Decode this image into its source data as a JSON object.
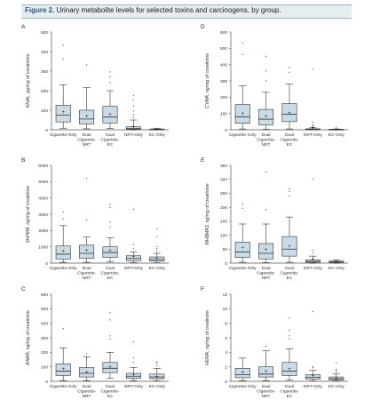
{
  "figure": {
    "label": "Figure 2.",
    "caption": "Urinary metabolite levels for selected toxins and carcinogens, by group."
  },
  "colors": {
    "box_fill": "#c9dbe7",
    "box_stroke": "#333333",
    "caption_bg": "#e5edf1",
    "caption_border": "#9cb6c3",
    "label_accent": "#2a5b77"
  },
  "chart_data": [
    {
      "panel": "A",
      "type": "box",
      "ylabel": "NNAL, pg/mg of creatinine",
      "ylim": [
        0,
        500
      ],
      "yticks": [
        0,
        100,
        200,
        300,
        400,
        500
      ],
      "categories": [
        "Cigarette-Only",
        "Dual Cigarette-NRT",
        "Dual Cigarette-EC",
        "NRT-Only",
        "EC-Only"
      ],
      "boxes": [
        {
          "min": 8,
          "q1": 40,
          "median": 75,
          "q3": 125,
          "max": 230,
          "mean": 90,
          "outliers": [
            360,
            430
          ]
        },
        {
          "min": 5,
          "q1": 30,
          "median": 55,
          "q3": 100,
          "max": 215,
          "mean": 70,
          "outliers": [
            330
          ]
        },
        {
          "min": 6,
          "q1": 35,
          "median": 65,
          "q3": 120,
          "max": 200,
          "mean": 80,
          "outliers": [
            240,
            270,
            295
          ]
        },
        {
          "min": 0,
          "q1": 3,
          "median": 6,
          "q3": 15,
          "max": 50,
          "mean": 15,
          "outliers": [
            60,
            75,
            95,
            120,
            150,
            175
          ]
        },
        {
          "min": 0,
          "q1": 1,
          "median": 2,
          "q3": 4,
          "max": 8,
          "mean": 3,
          "outliers": []
        }
      ]
    },
    {
      "panel": "D",
      "type": "box",
      "ylabel": "CYMA, ng/mg of creatinine",
      "ylim": [
        0,
        600
      ],
      "yticks": [
        0,
        100,
        200,
        300,
        400,
        500,
        600
      ],
      "categories": [
        "Cigarette-Only",
        "Dual Cigarette-NRT",
        "Dual Cigarette-EC",
        "NRT-Only",
        "EC-Only"
      ],
      "boxes": [
        {
          "min": 5,
          "q1": 40,
          "median": 80,
          "q3": 155,
          "max": 270,
          "mean": 100,
          "outliers": [
            460,
            530
          ]
        },
        {
          "min": 3,
          "q1": 30,
          "median": 65,
          "q3": 125,
          "max": 230,
          "mean": 85,
          "outliers": [
            300,
            360,
            450
          ]
        },
        {
          "min": 5,
          "q1": 50,
          "median": 95,
          "q3": 160,
          "max": 280,
          "mean": 105,
          "outliers": [
            350,
            380
          ]
        },
        {
          "min": 0,
          "q1": 1,
          "median": 3,
          "q3": 6,
          "max": 12,
          "mean": 15,
          "outliers": [
            20,
            30,
            45,
            370
          ]
        },
        {
          "min": 0,
          "q1": 1,
          "median": 2,
          "q3": 3,
          "max": 5,
          "mean": 3,
          "outliers": [
            10
          ]
        }
      ]
    },
    {
      "panel": "B",
      "type": "box",
      "ylabel": "3HPMA, ng/mg of creatinine",
      "ylim": [
        0,
        6000
      ],
      "yticks": [
        0,
        1000,
        2000,
        3000,
        4000,
        5000,
        6000
      ],
      "categories": [
        "Cigarette-Only",
        "Dual Cigarette-NRT",
        "Dual Cigarette-EC",
        "NRT-Only",
        "EC-Only"
      ],
      "boxes": [
        {
          "min": 50,
          "q1": 250,
          "median": 550,
          "q3": 1050,
          "max": 2300,
          "mean": 750,
          "outliers": [
            2700,
            3100
          ]
        },
        {
          "min": 50,
          "q1": 300,
          "median": 600,
          "q3": 1100,
          "max": 1600,
          "mean": 780,
          "outliers": [
            2600,
            5200
          ]
        },
        {
          "min": 80,
          "q1": 350,
          "median": 650,
          "q3": 1000,
          "max": 1550,
          "mean": 800,
          "outliers": [
            2200,
            2500,
            3400,
            3600
          ]
        },
        {
          "min": 30,
          "q1": 150,
          "median": 280,
          "q3": 450,
          "max": 700,
          "mean": 380,
          "outliers": [
            900,
            1100,
            3300
          ]
        },
        {
          "min": 20,
          "q1": 120,
          "median": 220,
          "q3": 380,
          "max": 600,
          "mean": 300,
          "outliers": [
            700,
            850,
            1000,
            1600,
            2100
          ]
        }
      ]
    },
    {
      "panel": "E",
      "type": "box",
      "ylabel": "MHBMA3, ng/mg of creatinine",
      "ylim": [
        0,
        350
      ],
      "yticks": [
        0,
        50,
        100,
        150,
        200,
        250,
        300,
        350
      ],
      "categories": [
        "Cigarette-Only",
        "Dual Cigarette-NRT",
        "Dual Cigarette-EC",
        "NRT-Only",
        "EC-Only"
      ],
      "boxes": [
        {
          "min": 3,
          "q1": 20,
          "median": 40,
          "q3": 75,
          "max": 140,
          "mean": 55,
          "outliers": [
            195,
            210
          ]
        },
        {
          "min": 2,
          "q1": 15,
          "median": 35,
          "q3": 70,
          "max": 140,
          "mean": 50,
          "outliers": [
            190,
            325
          ]
        },
        {
          "min": 3,
          "q1": 25,
          "median": 50,
          "q3": 95,
          "max": 165,
          "mean": 60,
          "outliers": [
            240,
            255,
            265
          ]
        },
        {
          "min": 0,
          "q1": 3,
          "median": 6,
          "q3": 12,
          "max": 25,
          "mean": 15,
          "outliers": [
            35,
            45,
            300
          ]
        },
        {
          "min": 0,
          "q1": 2,
          "median": 4,
          "q3": 7,
          "max": 12,
          "mean": 5,
          "outliers": []
        }
      ]
    },
    {
      "panel": "C",
      "type": "box",
      "ylabel": "AAMA, ng/mg of creatinine",
      "ylim": [
        0,
        600
      ],
      "yticks": [
        0,
        100,
        200,
        300,
        400,
        500,
        600
      ],
      "categories": [
        "Cigarette-Only",
        "Dual Cigarette-NRT",
        "Dual Cigarette-EC",
        "NRT-Only",
        "EC-Only"
      ],
      "boxes": [
        {
          "min": 5,
          "q1": 40,
          "median": 70,
          "q3": 120,
          "max": 230,
          "mean": 85,
          "outliers": [
            360
          ]
        },
        {
          "min": 5,
          "q1": 30,
          "median": 55,
          "q3": 95,
          "max": 170,
          "mean": 65,
          "outliers": [
            190
          ]
        },
        {
          "min": 20,
          "q1": 60,
          "median": 90,
          "q3": 130,
          "max": 200,
          "mean": 100,
          "outliers": [
            290,
            310,
            420,
            470
          ]
        },
        {
          "min": 5,
          "q1": 20,
          "median": 35,
          "q3": 55,
          "max": 95,
          "mean": 45,
          "outliers": [
            130,
            160,
            270
          ]
        },
        {
          "min": 3,
          "q1": 18,
          "median": 30,
          "q3": 50,
          "max": 90,
          "mean": 35,
          "outliers": [
            105,
            125,
            130
          ]
        }
      ]
    },
    {
      "panel": "F",
      "type": "box",
      "ylabel": "HEMA, ng/mg of creatinine",
      "ylim": [
        0,
        12
      ],
      "yticks": [
        0,
        2,
        4,
        6,
        8,
        10,
        12
      ],
      "categories": [
        "Cigarette-Only",
        "Dual Cigarette-NRT",
        "Dual Cigarette-EC",
        "NRT-Only",
        "EC-Only"
      ],
      "boxes": [
        {
          "min": 0.1,
          "q1": 0.5,
          "median": 0.9,
          "q3": 1.8,
          "max": 3.2,
          "mean": 1.2,
          "outliers": []
        },
        {
          "min": 0.1,
          "q1": 0.6,
          "median": 1.0,
          "q3": 2.0,
          "max": 4.2,
          "mean": 1.4,
          "outliers": [
            4.8
          ]
        },
        {
          "min": 0.2,
          "q1": 0.8,
          "median": 1.4,
          "q3": 2.6,
          "max": 4.5,
          "mean": 1.7,
          "outliers": [
            5.8,
            6.2,
            7.0,
            8.7
          ]
        },
        {
          "min": 0.05,
          "q1": 0.3,
          "median": 0.55,
          "q3": 0.9,
          "max": 1.5,
          "mean": 0.8,
          "outliers": [
            1.8,
            2.0,
            9.6
          ]
        },
        {
          "min": 0.05,
          "q1": 0.2,
          "median": 0.35,
          "q3": 0.6,
          "max": 1.0,
          "mean": 0.45,
          "outliers": [
            1.2,
            1.4,
            1.6,
            2.5
          ]
        }
      ]
    }
  ]
}
